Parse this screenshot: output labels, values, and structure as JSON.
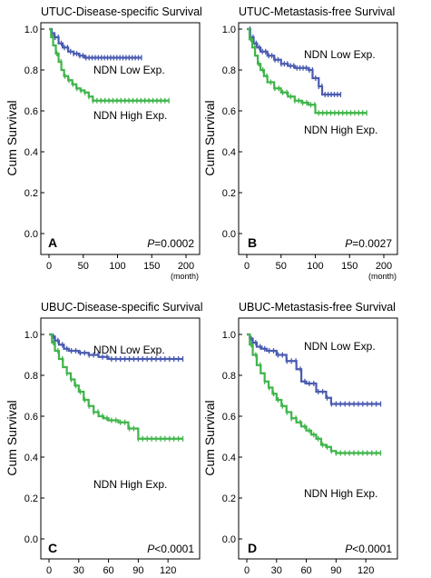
{
  "chart_data": [
    {
      "panel": "A",
      "type": "line",
      "title": "UTUC-Disease-specific Survival",
      "xlabel": "(month)",
      "ylabel": "Cum Survival",
      "xlim": [
        0,
        200
      ],
      "ylim": [
        0,
        1.0
      ],
      "xticks": [
        0,
        50,
        100,
        150,
        200
      ],
      "yticks": [
        0.0,
        0.2,
        0.4,
        0.6,
        0.8,
        1.0
      ],
      "p_value": "=0.0002",
      "series": [
        {
          "name": "NDN Low Exp.",
          "color": "#4a5bb0",
          "x": [
            0,
            4,
            8,
            14,
            20,
            28,
            36,
            44,
            52,
            60,
            68,
            80,
            100,
            120,
            135
          ],
          "y": [
            1.0,
            0.98,
            0.96,
            0.93,
            0.91,
            0.89,
            0.88,
            0.87,
            0.86,
            0.86,
            0.86,
            0.86,
            0.86,
            0.86,
            0.86
          ]
        },
        {
          "name": "NDN High Exp.",
          "color": "#3fb54a",
          "x": [
            0,
            3,
            6,
            10,
            14,
            18,
            22,
            28,
            34,
            40,
            46,
            52,
            58,
            64,
            80,
            100,
            130,
            160,
            175
          ],
          "y": [
            1.0,
            0.96,
            0.92,
            0.88,
            0.84,
            0.8,
            0.77,
            0.75,
            0.73,
            0.71,
            0.7,
            0.69,
            0.67,
            0.65,
            0.65,
            0.65,
            0.65,
            0.65,
            0.65
          ]
        }
      ]
    },
    {
      "panel": "B",
      "type": "line",
      "title": "UTUC-Metastasis-free Survival",
      "xlabel": "(month)",
      "ylabel": "Cum Survival",
      "xlim": [
        0,
        200
      ],
      "ylim": [
        0,
        1.0
      ],
      "xticks": [
        0,
        50,
        100,
        150,
        200
      ],
      "yticks": [
        0.0,
        0.2,
        0.4,
        0.6,
        0.8,
        1.0
      ],
      "p_value": "=0.0027",
      "series": [
        {
          "name": "NDN Low Exp.",
          "color": "#4a5bb0",
          "x": [
            0,
            5,
            10,
            15,
            20,
            30,
            40,
            50,
            60,
            70,
            80,
            90,
            96,
            100,
            105,
            110,
            125,
            137
          ],
          "y": [
            1.0,
            0.96,
            0.93,
            0.91,
            0.89,
            0.87,
            0.85,
            0.83,
            0.82,
            0.81,
            0.81,
            0.8,
            0.76,
            0.76,
            0.72,
            0.68,
            0.68,
            0.68
          ]
        },
        {
          "name": "NDN High Exp.",
          "color": "#3fb54a",
          "x": [
            0,
            4,
            8,
            12,
            16,
            20,
            25,
            30,
            40,
            50,
            60,
            70,
            80,
            90,
            98,
            100,
            120,
            150,
            175
          ],
          "y": [
            1.0,
            0.95,
            0.91,
            0.87,
            0.83,
            0.8,
            0.77,
            0.74,
            0.71,
            0.69,
            0.67,
            0.65,
            0.64,
            0.63,
            0.63,
            0.59,
            0.59,
            0.59,
            0.59
          ]
        }
      ]
    },
    {
      "panel": "C",
      "type": "line",
      "title": "UBUC-Disease-specific Survival",
      "xlabel": "",
      "ylabel": "Cum Survival",
      "xlim": [
        0,
        140
      ],
      "ylim": [
        0,
        1.0
      ],
      "xticks": [
        0,
        30,
        60,
        90,
        120
      ],
      "yticks": [
        0.0,
        0.2,
        0.4,
        0.6,
        0.8,
        1.0
      ],
      "p_value": "<0.0001",
      "series": [
        {
          "name": "NDN Low Exp.",
          "color": "#4a5bb0",
          "x": [
            0,
            3,
            6,
            10,
            15,
            20,
            30,
            40,
            50,
            60,
            70,
            90,
            110,
            135
          ],
          "y": [
            1.0,
            0.99,
            0.97,
            0.95,
            0.93,
            0.92,
            0.91,
            0.9,
            0.89,
            0.88,
            0.88,
            0.88,
            0.88,
            0.88
          ]
        },
        {
          "name": "NDN High Exp.",
          "color": "#3fb54a",
          "x": [
            0,
            3,
            6,
            10,
            14,
            18,
            22,
            26,
            30,
            35,
            40,
            45,
            50,
            55,
            60,
            70,
            80,
            85,
            90,
            100,
            120,
            135
          ],
          "y": [
            1.0,
            0.96,
            0.92,
            0.88,
            0.84,
            0.81,
            0.78,
            0.75,
            0.72,
            0.68,
            0.65,
            0.62,
            0.6,
            0.59,
            0.58,
            0.57,
            0.54,
            0.54,
            0.49,
            0.49,
            0.49,
            0.49
          ]
        }
      ]
    },
    {
      "panel": "D",
      "type": "line",
      "title": "UBUC-Metastasis-free Survival",
      "xlabel": "",
      "ylabel": "Cum Survival",
      "xlim": [
        0,
        140
      ],
      "ylim": [
        0,
        1.0
      ],
      "xticks": [
        0,
        30,
        60,
        90,
        120
      ],
      "yticks": [
        0.0,
        0.2,
        0.4,
        0.6,
        0.8,
        1.0
      ],
      "p_value": "<0.0001",
      "series": [
        {
          "name": "NDN Low Exp.",
          "color": "#4a5bb0",
          "x": [
            0,
            3,
            6,
            10,
            15,
            20,
            30,
            40,
            50,
            55,
            60,
            70,
            80,
            85,
            90,
            110,
            135
          ],
          "y": [
            1.0,
            0.98,
            0.96,
            0.94,
            0.93,
            0.92,
            0.9,
            0.87,
            0.83,
            0.77,
            0.76,
            0.72,
            0.69,
            0.66,
            0.66,
            0.66,
            0.66
          ]
        },
        {
          "name": "NDN High Exp.",
          "color": "#3fb54a",
          "x": [
            0,
            3,
            6,
            10,
            14,
            18,
            22,
            26,
            30,
            35,
            40,
            45,
            50,
            55,
            60,
            65,
            70,
            75,
            80,
            85,
            90,
            110,
            135
          ],
          "y": [
            1.0,
            0.95,
            0.9,
            0.85,
            0.81,
            0.77,
            0.74,
            0.71,
            0.68,
            0.65,
            0.62,
            0.59,
            0.57,
            0.55,
            0.53,
            0.51,
            0.49,
            0.46,
            0.45,
            0.43,
            0.42,
            0.42,
            0.42
          ]
        }
      ]
    }
  ]
}
